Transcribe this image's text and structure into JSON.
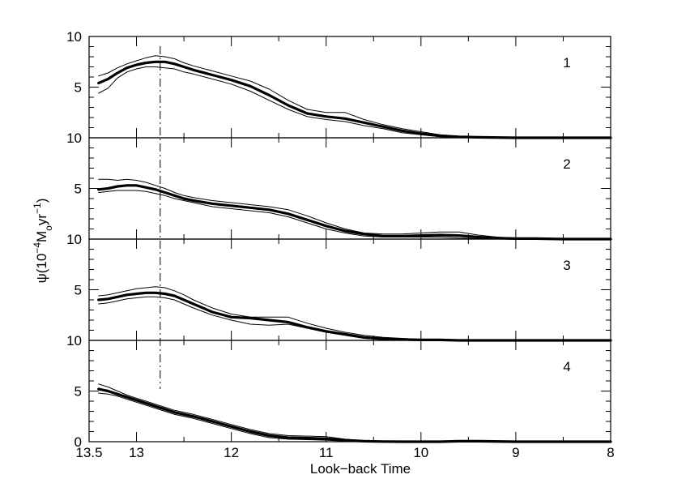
{
  "chart_data": {
    "type": "line",
    "xlabel": "Look−back Time",
    "ylabel_parts": [
      "ψ(10",
      "−4",
      "M",
      "o",
      "yr",
      "−1",
      ")"
    ],
    "x_ticks": [
      13.5,
      13,
      12,
      11,
      10,
      9,
      8
    ],
    "x_tick_labels": [
      "13.5",
      "13",
      "12",
      "11",
      "10",
      "9",
      "8"
    ],
    "xlim": [
      13.5,
      8
    ],
    "reference_line_x": 12.75,
    "panels": [
      {
        "label": "1",
        "ylim": [
          0,
          10
        ],
        "y_tick_labels": [
          "10",
          "5",
          "0"
        ],
        "series": [
          {
            "role": "mean",
            "x": [
              13.4,
              13.3,
              13.2,
              13.1,
              13.0,
              12.9,
              12.8,
              12.7,
              12.6,
              12.5,
              12.4,
              12.2,
              12.0,
              11.8,
              11.6,
              11.4,
              11.2,
              11.0,
              10.8,
              10.6,
              10.4,
              10.2,
              10.0,
              9.8,
              9.6,
              9.4,
              9.0,
              8.5,
              8.0
            ],
            "y": [
              5.4,
              5.8,
              6.4,
              6.9,
              7.2,
              7.4,
              7.5,
              7.5,
              7.3,
              7.0,
              6.7,
              6.2,
              5.7,
              5.1,
              4.2,
              3.2,
              2.4,
              2.1,
              1.9,
              1.5,
              1.1,
              0.7,
              0.4,
              0.2,
              0.1,
              0.05,
              0.0,
              0.0,
              0.0
            ]
          },
          {
            "role": "upper",
            "x": [
              13.4,
              13.3,
              13.2,
              13.1,
              13.0,
              12.9,
              12.8,
              12.7,
              12.6,
              12.5,
              12.4,
              12.2,
              12.0,
              11.8,
              11.6,
              11.4,
              11.2,
              11.0,
              10.8,
              10.6,
              10.4,
              10.2,
              10.0,
              9.8,
              9.6,
              9.4,
              9.0,
              8.5,
              8.0
            ],
            "y": [
              6.1,
              6.4,
              6.9,
              7.3,
              7.6,
              7.9,
              8.1,
              8.0,
              7.8,
              7.4,
              7.1,
              6.6,
              6.1,
              5.6,
              4.8,
              3.7,
              2.8,
              2.5,
              2.5,
              1.8,
              1.3,
              0.9,
              0.6,
              0.3,
              0.15,
              0.05,
              0.0,
              0.0,
              0.0
            ]
          },
          {
            "role": "lower",
            "x": [
              13.4,
              13.3,
              13.2,
              13.1,
              13.0,
              12.9,
              12.8,
              12.7,
              12.6,
              12.5,
              12.4,
              12.2,
              12.0,
              11.8,
              11.6,
              11.4,
              11.2,
              11.0,
              10.8,
              10.6,
              10.4,
              10.2,
              10.0,
              9.8,
              9.6,
              9.4,
              9.0,
              8.5,
              8.0
            ],
            "y": [
              4.4,
              4.9,
              5.9,
              6.5,
              6.8,
              7.0,
              7.0,
              6.9,
              6.8,
              6.5,
              6.3,
              5.8,
              5.3,
              4.6,
              3.7,
              2.8,
              2.1,
              1.8,
              1.6,
              1.2,
              0.9,
              0.5,
              0.3,
              0.1,
              0.05,
              0.0,
              0.0,
              0.0,
              0.0
            ]
          }
        ]
      },
      {
        "label": "2",
        "ylim": [
          0,
          10
        ],
        "y_tick_labels": [
          "10",
          "5",
          "0"
        ],
        "series": [
          {
            "role": "mean",
            "x": [
              13.4,
              13.3,
              13.2,
              13.1,
              13.0,
              12.9,
              12.8,
              12.7,
              12.6,
              12.5,
              12.4,
              12.2,
              12.0,
              11.8,
              11.6,
              11.4,
              11.2,
              11.0,
              10.8,
              10.6,
              10.4,
              10.2,
              10.0,
              9.8,
              9.6,
              9.4,
              9.2,
              9.0,
              8.8,
              8.5,
              8.0
            ],
            "y": [
              4.9,
              5.0,
              5.2,
              5.3,
              5.3,
              5.1,
              4.9,
              4.6,
              4.3,
              4.0,
              3.8,
              3.5,
              3.3,
              3.1,
              2.9,
              2.5,
              1.9,
              1.3,
              0.8,
              0.5,
              0.3,
              0.3,
              0.35,
              0.4,
              0.35,
              0.2,
              0.1,
              0.05,
              0.05,
              0.0,
              0.0
            ]
          },
          {
            "role": "upper",
            "x": [
              13.4,
              13.3,
              13.2,
              13.1,
              13.0,
              12.9,
              12.8,
              12.7,
              12.6,
              12.5,
              12.4,
              12.2,
              12.0,
              11.8,
              11.6,
              11.4,
              11.2,
              11.0,
              10.8,
              10.6,
              10.4,
              10.2,
              10.0,
              9.8,
              9.6,
              9.4,
              9.2,
              9.0,
              8.8,
              8.5,
              8.0
            ],
            "y": [
              5.9,
              5.9,
              5.8,
              5.9,
              5.8,
              5.6,
              5.3,
              5.0,
              4.6,
              4.3,
              4.1,
              3.8,
              3.6,
              3.4,
              3.2,
              2.9,
              2.3,
              1.6,
              1.0,
              0.6,
              0.5,
              0.5,
              0.6,
              0.7,
              0.7,
              0.4,
              0.2,
              0.1,
              0.1,
              0.0,
              0.0
            ]
          },
          {
            "role": "lower",
            "x": [
              13.4,
              13.3,
              13.2,
              13.1,
              13.0,
              12.9,
              12.8,
              12.7,
              12.6,
              12.5,
              12.4,
              12.2,
              12.0,
              11.8,
              11.6,
              11.4,
              11.2,
              11.0,
              10.8,
              10.6,
              10.4,
              10.2,
              10.0,
              9.8,
              9.6,
              9.4,
              9.2,
              9.0,
              8.8,
              8.5,
              8.0
            ],
            "y": [
              4.6,
              4.7,
              4.8,
              4.8,
              4.8,
              4.7,
              4.5,
              4.3,
              4.0,
              3.8,
              3.6,
              3.2,
              3.0,
              2.8,
              2.6,
              2.2,
              1.6,
              1.0,
              0.6,
              0.3,
              0.2,
              0.2,
              0.2,
              0.2,
              0.1,
              0.05,
              0.0,
              0.0,
              0.0,
              0.0,
              0.0
            ]
          }
        ]
      },
      {
        "label": "3",
        "ylim": [
          0,
          10
        ],
        "y_tick_labels": [
          "10",
          "5",
          "0"
        ],
        "series": [
          {
            "role": "mean",
            "x": [
              13.4,
              13.3,
              13.2,
              13.1,
              13.0,
              12.9,
              12.8,
              12.7,
              12.6,
              12.5,
              12.4,
              12.2,
              12.0,
              11.8,
              11.6,
              11.4,
              11.2,
              11.0,
              10.8,
              10.6,
              10.4,
              10.2,
              10.0,
              9.8,
              9.6,
              9.4,
              9.0,
              8.5,
              8.0
            ],
            "y": [
              4.0,
              4.1,
              4.3,
              4.5,
              4.6,
              4.7,
              4.7,
              4.6,
              4.4,
              4.0,
              3.6,
              2.8,
              2.3,
              2.2,
              2.0,
              1.8,
              1.3,
              0.9,
              0.6,
              0.3,
              0.15,
              0.1,
              0.05,
              0.05,
              0.0,
              0.0,
              0.0,
              0.0,
              0.0
            ]
          },
          {
            "role": "upper",
            "x": [
              13.4,
              13.3,
              13.2,
              13.1,
              13.0,
              12.9,
              12.8,
              12.7,
              12.6,
              12.5,
              12.4,
              12.2,
              12.0,
              11.8,
              11.6,
              11.4,
              11.2,
              11.0,
              10.8,
              10.6,
              10.4,
              10.2,
              10.0,
              9.8,
              9.6,
              9.4,
              9.0,
              8.5,
              8.0
            ],
            "y": [
              4.4,
              4.5,
              4.7,
              4.9,
              5.1,
              5.2,
              5.3,
              5.2,
              4.9,
              4.5,
              4.0,
              3.2,
              2.6,
              2.3,
              2.3,
              2.3,
              1.7,
              1.2,
              0.8,
              0.5,
              0.3,
              0.2,
              0.1,
              0.05,
              0.0,
              0.0,
              0.0,
              0.0,
              0.0
            ]
          },
          {
            "role": "lower",
            "x": [
              13.4,
              13.3,
              13.2,
              13.1,
              13.0,
              12.9,
              12.8,
              12.7,
              12.6,
              12.5,
              12.4,
              12.2,
              12.0,
              11.8,
              11.6,
              11.4,
              11.2,
              11.0,
              10.8,
              10.6,
              10.4,
              10.2,
              10.0,
              9.8,
              9.6,
              9.4,
              9.0,
              8.5,
              8.0
            ],
            "y": [
              3.6,
              3.7,
              3.9,
              4.1,
              4.2,
              4.3,
              4.3,
              4.2,
              4.0,
              3.6,
              3.2,
              2.5,
              2.0,
              1.6,
              1.5,
              1.6,
              1.2,
              0.8,
              0.5,
              0.2,
              0.1,
              0.05,
              0.0,
              0.0,
              0.0,
              0.0,
              0.0,
              0.0,
              0.0
            ]
          }
        ]
      },
      {
        "label": "4",
        "ylim": [
          0,
          10
        ],
        "y_tick_labels": [
          "10",
          "5",
          "0"
        ],
        "series": [
          {
            "role": "mean",
            "x": [
              13.4,
              13.3,
              13.2,
              13.1,
              13.0,
              12.9,
              12.8,
              12.7,
              12.6,
              12.5,
              12.4,
              12.2,
              12.0,
              11.8,
              11.6,
              11.4,
              11.2,
              11.0,
              10.8,
              10.6,
              10.4,
              10.2,
              10.0,
              9.8,
              9.6,
              9.4,
              9.0,
              8.5,
              8.0
            ],
            "y": [
              5.2,
              5.0,
              4.7,
              4.4,
              4.1,
              3.8,
              3.5,
              3.2,
              2.9,
              2.7,
              2.5,
              2.0,
              1.5,
              1.0,
              0.6,
              0.4,
              0.35,
              0.3,
              0.15,
              0.05,
              0.02,
              0.0,
              0.0,
              0.0,
              0.05,
              0.05,
              0.0,
              0.0,
              0.0
            ]
          },
          {
            "role": "upper",
            "x": [
              13.4,
              13.3,
              13.2,
              13.1,
              13.0,
              12.9,
              12.8,
              12.7,
              12.6,
              12.5,
              12.4,
              12.2,
              12.0,
              11.8,
              11.6,
              11.4,
              11.2,
              11.0,
              10.8,
              10.6,
              10.4,
              10.2,
              10.0,
              9.8,
              9.6,
              9.4,
              9.0,
              8.5,
              8.0
            ],
            "y": [
              5.7,
              5.4,
              5.0,
              4.6,
              4.3,
              4.0,
              3.7,
              3.4,
              3.1,
              2.9,
              2.7,
              2.2,
              1.7,
              1.2,
              0.8,
              0.6,
              0.55,
              0.5,
              0.25,
              0.1,
              0.05,
              0.02,
              0.02,
              0.05,
              0.1,
              0.08,
              0.02,
              0.0,
              0.0
            ]
          },
          {
            "role": "lower",
            "x": [
              13.4,
              13.3,
              13.2,
              13.1,
              13.0,
              12.9,
              12.8,
              12.7,
              12.6,
              12.5,
              12.4,
              12.2,
              12.0,
              11.8,
              11.6,
              11.4,
              11.2,
              11.0,
              10.8,
              10.6,
              10.4,
              10.2,
              10.0,
              9.8,
              9.6,
              9.4,
              9.0,
              8.5,
              8.0
            ],
            "y": [
              4.8,
              4.7,
              4.5,
              4.2,
              3.9,
              3.6,
              3.3,
              3.0,
              2.7,
              2.5,
              2.3,
              1.8,
              1.3,
              0.8,
              0.4,
              0.25,
              0.2,
              0.15,
              0.05,
              0.0,
              0.0,
              0.0,
              0.0,
              0.0,
              0.0,
              0.0,
              0.0,
              0.0,
              0.0
            ]
          }
        ]
      }
    ]
  }
}
